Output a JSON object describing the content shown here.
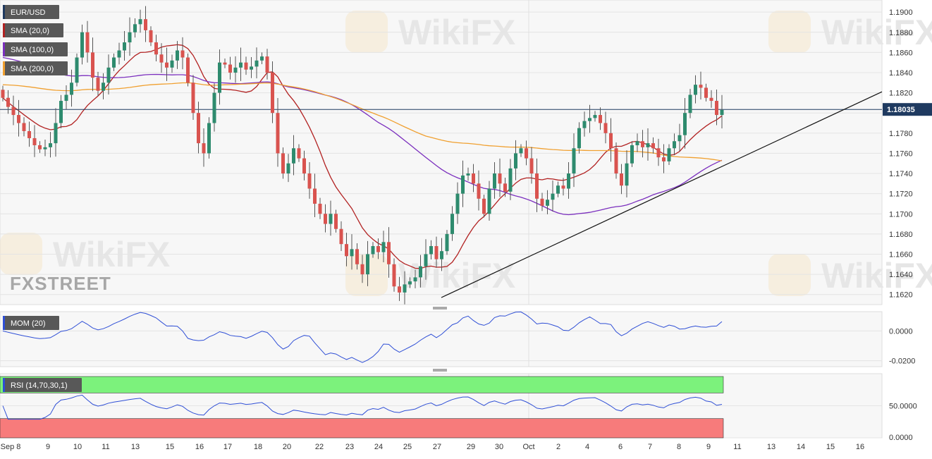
{
  "chart_data": [
    {
      "type": "candlestick",
      "symbol": "EUR/USD",
      "indicators": [
        {
          "name": "SMA (20,0)",
          "color": "#b22222"
        },
        {
          "name": "SMA (100,0)",
          "color": "#7b2fbe"
        },
        {
          "name": "SMA (200,0)",
          "color": "#f0a030"
        }
      ],
      "ylim": [
        1.161,
        1.1912
      ],
      "yticks": [
        "1.1900",
        "1.1880",
        "1.1860",
        "1.1840",
        "1.1820",
        "1.1800",
        "1.1780",
        "1.1760",
        "1.1740",
        "1.1720",
        "1.1700",
        "1.1680",
        "1.1660",
        "1.1640",
        "1.1620"
      ],
      "last_price": "1.18035",
      "date_labels": [
        "Sep 8",
        "9",
        "10",
        "11",
        "13",
        "15",
        "16",
        "17",
        "18",
        "20",
        "22",
        "23",
        "24",
        "25",
        "27",
        "29",
        "30",
        "Oct",
        "2",
        "4",
        "6",
        "7",
        "8",
        "9",
        "11",
        "13",
        "14",
        "15",
        "16"
      ],
      "trendline": [
        [
          1.1617,
          1.1821
        ]
      ],
      "candle_colors": {
        "up": "#2e8b6e",
        "down": "#d9534f"
      },
      "close_series": [
        1.1815,
        1.1806,
        1.1798,
        1.179,
        1.1782,
        1.1775,
        1.1768,
        1.1764,
        1.1766,
        1.177,
        1.179,
        1.1812,
        1.1818,
        1.183,
        1.1855,
        1.188,
        1.186,
        1.1835,
        1.1822,
        1.183,
        1.1845,
        1.1855,
        1.1862,
        1.187,
        1.188,
        1.1888,
        1.1893,
        1.1882,
        1.187,
        1.1858,
        1.185,
        1.1845,
        1.1852,
        1.1862,
        1.1855,
        1.183,
        1.18,
        1.177,
        1.176,
        1.179,
        1.182,
        1.185,
        1.1848,
        1.184,
        1.1845,
        1.185,
        1.1843,
        1.1846,
        1.1852,
        1.1856,
        1.184,
        1.18,
        1.176,
        1.174,
        1.175,
        1.1765,
        1.1755,
        1.174,
        1.1725,
        1.171,
        1.17,
        1.169,
        1.17,
        1.1685,
        1.167,
        1.1658,
        1.1665,
        1.165,
        1.164,
        1.166,
        1.1668,
        1.1662,
        1.1672,
        1.165,
        1.1628,
        1.1622,
        1.163,
        1.1633,
        1.1637,
        1.1648,
        1.166,
        1.1668,
        1.1655,
        1.1663,
        1.168,
        1.17,
        1.172,
        1.1738,
        1.174,
        1.173,
        1.1715,
        1.17,
        1.1725,
        1.174,
        1.173,
        1.1722,
        1.1745,
        1.176,
        1.1765,
        1.1755,
        1.174,
        1.1715,
        1.1708,
        1.1714,
        1.172,
        1.1728,
        1.1725,
        1.174,
        1.1765,
        1.1785,
        1.1792,
        1.1795,
        1.1798,
        1.179,
        1.178,
        1.1765,
        1.174,
        1.1728,
        1.175,
        1.1768,
        1.1772,
        1.1766,
        1.177,
        1.1765,
        1.1756,
        1.1752,
        1.1765,
        1.1772,
        1.1778,
        1.18,
        1.1818,
        1.1828,
        1.1825,
        1.1815,
        1.1812,
        1.1798,
        1.1803
      ]
    },
    {
      "type": "line",
      "name": "MOM (20)",
      "color": "#2f4fd6",
      "yticks": [
        "0.0000",
        "-0.0200"
      ],
      "ylim": [
        -0.024,
        0.013
      ]
    },
    {
      "type": "line",
      "name": "RSI (14,70,30,1)",
      "color": "#2f4fd6",
      "yticks": [
        "50.0000",
        "0.0000"
      ],
      "ylim": [
        0,
        100
      ],
      "overbought": 70,
      "oversold": 30,
      "overbought_color": "#7cf27c",
      "oversold_color": "#f77b7b"
    }
  ],
  "watermark": {
    "brand": "WikiFX",
    "logo": "FXSTREET"
  }
}
